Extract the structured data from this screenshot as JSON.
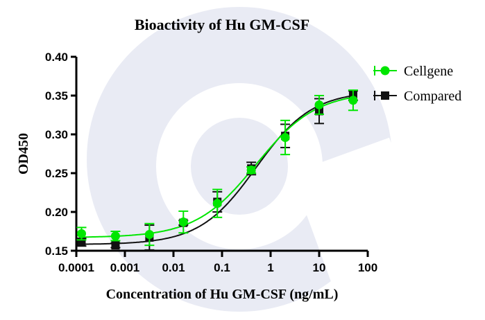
{
  "chart_data": {
    "type": "scatter",
    "title": "Bioactivity of Hu GM-CSF",
    "xlabel": "Concentration of Hu GM-CSF (ng/mL)",
    "ylabel": "OD450",
    "xscale": "log",
    "xlim": [
      0.0001,
      100
    ],
    "ylim": [
      0.15,
      0.4
    ],
    "xticks": [
      "0.0001",
      "0.001",
      "0.01",
      "0.1",
      "1",
      "10",
      "100"
    ],
    "yticks": [
      "0.15",
      "0.20",
      "0.25",
      "0.30",
      "0.35",
      "0.40"
    ],
    "legend_position": "top-right",
    "x": [
      0.000128,
      0.00064,
      0.0032,
      0.016,
      0.08,
      0.4,
      2,
      10,
      50
    ],
    "series": [
      {
        "name": "Cellgene",
        "color": "#00e600",
        "marker": "circle",
        "values": [
          0.172,
          0.169,
          0.171,
          0.187,
          0.211,
          0.254,
          0.296,
          0.338,
          0.344
        ],
        "error": [
          0.008,
          0.006,
          0.014,
          0.014,
          0.018,
          0.004,
          0.022,
          0.012,
          0.013
        ],
        "fit": {
          "bottom": 0.167,
          "top": 0.355,
          "ec50": 0.5,
          "hill": 0.7
        }
      },
      {
        "name": "Compared",
        "color": "#111111",
        "marker": "square",
        "values": [
          0.161,
          0.157,
          0.167,
          0.186,
          0.213,
          0.256,
          0.298,
          0.33,
          0.35
        ],
        "error": [
          0.005,
          0.003,
          0.016,
          0.003,
          0.013,
          0.008,
          0.015,
          0.016,
          0.006
        ],
        "fit": {
          "bottom": 0.158,
          "top": 0.356,
          "ec50": 0.5,
          "hill": 0.75
        }
      }
    ]
  }
}
